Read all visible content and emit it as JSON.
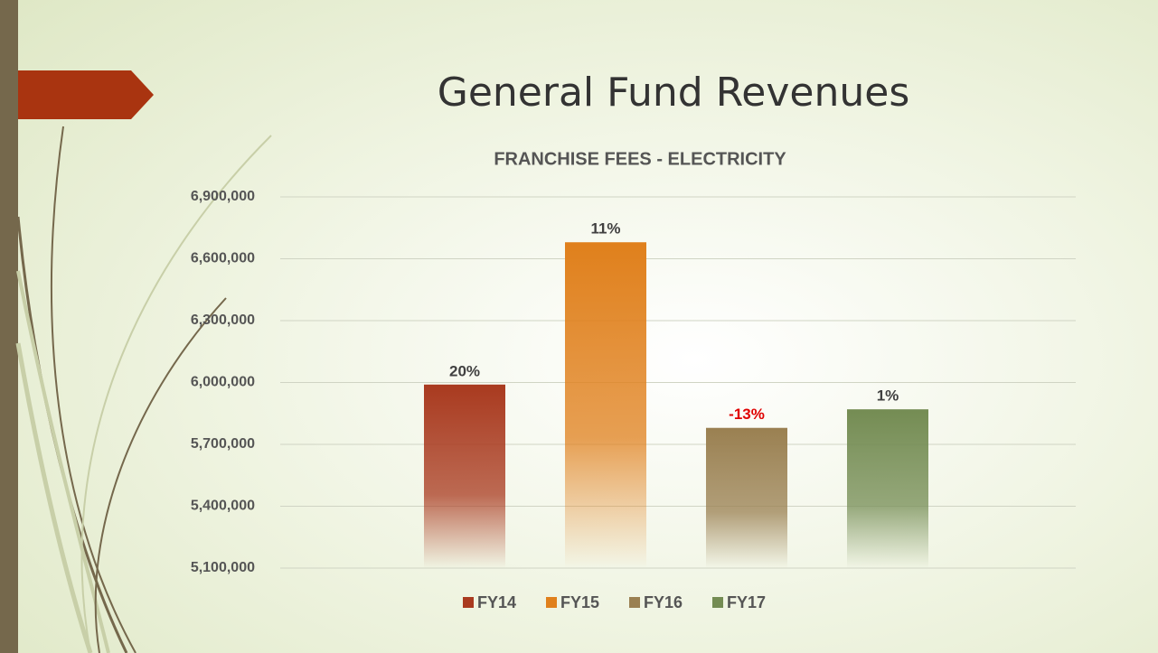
{
  "slide_title": "General Fund Revenues",
  "chart_data": {
    "type": "bar",
    "title": "FRANCHISE FEES - ELECTRICITY",
    "series": [
      {
        "name": "FY14",
        "color": "#a93a1f",
        "values": [
          5990000
        ]
      },
      {
        "name": "FY15",
        "color": "#e0801c",
        "values": [
          6680000
        ]
      },
      {
        "name": "FY16",
        "color": "#9a8051",
        "values": [
          5780000
        ]
      },
      {
        "name": "FY17",
        "color": "#748c53",
        "values": [
          5870000
        ]
      }
    ],
    "annotations": [
      "20%",
      "11%",
      "-13%",
      "1%"
    ],
    "annotation_colors": [
      "#404040",
      "#404040",
      "#e00000",
      "#404040"
    ],
    "ylim": [
      5100000,
      6900000
    ],
    "yticks": [
      {
        "value": 5100000,
        "label": "5,100,000"
      },
      {
        "value": 5400000,
        "label": "5,400,000"
      },
      {
        "value": 5700000,
        "label": "5,700,000"
      },
      {
        "value": 6000000,
        "label": "6,000,000"
      },
      {
        "value": 6300000,
        "label": "6,300,000"
      },
      {
        "value": 6600000,
        "label": "6,600,000"
      },
      {
        "value": 6900000,
        "label": "6,900,000"
      }
    ],
    "grid": true,
    "legend": "bottom"
  }
}
